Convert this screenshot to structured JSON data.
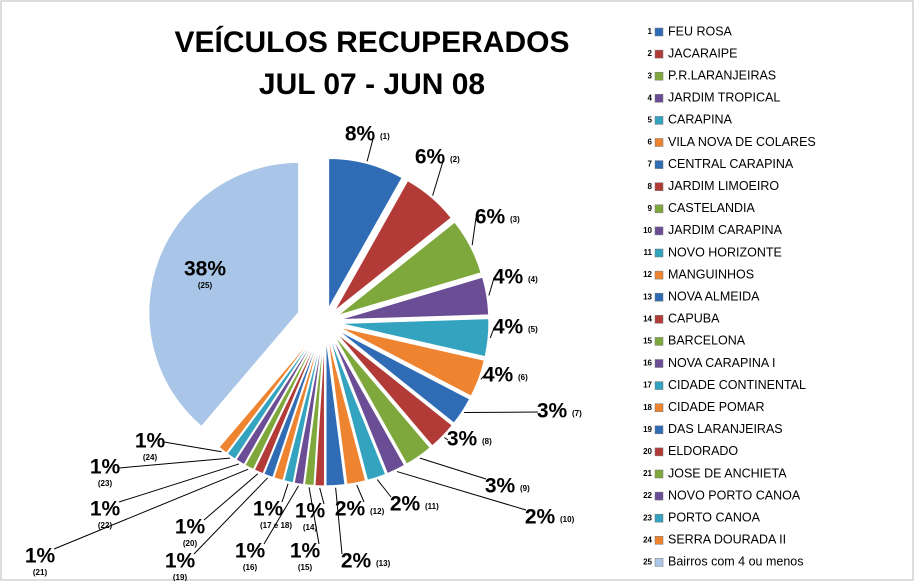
{
  "chart_data": {
    "type": "pie",
    "title": "VEÍCULOS RECUPERADOS",
    "subtitle": "JUL 07 - JUN 08",
    "categories": [
      "FEU ROSA",
      "JACARAIPE",
      "P.R.LARANJEIRAS",
      "JARDIM TROPICAL",
      "CARAPINA",
      "VILA NOVA DE COLARES",
      "CENTRAL CARAPINA",
      "JARDIM LIMOEIRO",
      "CASTELANDIA",
      "JARDIM CARAPINA",
      "NOVO HORIZONTE",
      "MANGUINHOS",
      "NOVA ALMEIDA",
      "CAPUBA",
      "BARCELONA",
      "NOVA CARAPINA I",
      "CIDADE CONTINENTAL",
      "CIDADE POMAR",
      "DAS LARANJEIRAS",
      "ELDORADO",
      "JOSE DE ANCHIETA",
      "NOVO PORTO CANOA",
      "PORTO CANOA",
      "SERRA DOURADA II",
      "Bairros com 4 ou menos"
    ],
    "legend_numbers": [
      1,
      2,
      3,
      4,
      5,
      6,
      7,
      8,
      9,
      10,
      11,
      12,
      13,
      14,
      15,
      16,
      17,
      18,
      19,
      20,
      21,
      22,
      23,
      24,
      25
    ],
    "values": [
      8,
      6,
      6,
      4,
      4,
      4,
      3,
      3,
      3,
      2,
      2,
      2,
      2,
      1,
      1,
      1,
      1,
      1,
      1,
      1,
      1,
      1,
      1,
      1,
      38
    ],
    "value_labels": [
      "8%",
      "6%",
      "6%",
      "4%",
      "4%",
      "4%",
      "3%",
      "3%",
      "3%",
      "2%",
      "2%",
      "2%",
      "2%",
      "1%",
      "1%",
      "1%",
      "1%",
      null,
      "1%",
      "1%",
      "1%",
      "1%",
      "1%",
      "1%",
      "38%"
    ],
    "label_notes": [
      "(1)",
      "(2)",
      "(3)",
      "(4)",
      "(5)",
      "(6)",
      "(7)",
      "(8)",
      "(9)",
      "(10)",
      "(11)",
      "(12)",
      "(13)",
      "(14)",
      "(15)",
      "(16)",
      "(17 e 18)",
      null,
      "(19)",
      "(20)",
      "(21)",
      "(22)",
      "(23)",
      "(24)",
      "(25)"
    ],
    "colors": [
      "#2f6cb5",
      "#b23b38",
      "#7fa83c",
      "#6a4d94",
      "#33a3c0",
      "#ee8430",
      "#2f6cb5",
      "#b23b38",
      "#7fa83c",
      "#6a4d94",
      "#33a3c0",
      "#ee8430",
      "#2f6cb5",
      "#b23b38",
      "#7fa83c",
      "#6a4d94",
      "#33a3c0",
      "#ee8430",
      "#2f6cb5",
      "#b23b38",
      "#7fa83c",
      "#6a4d94",
      "#33a3c0",
      "#ee8430",
      "#a9c6e8"
    ],
    "legend": "right"
  }
}
